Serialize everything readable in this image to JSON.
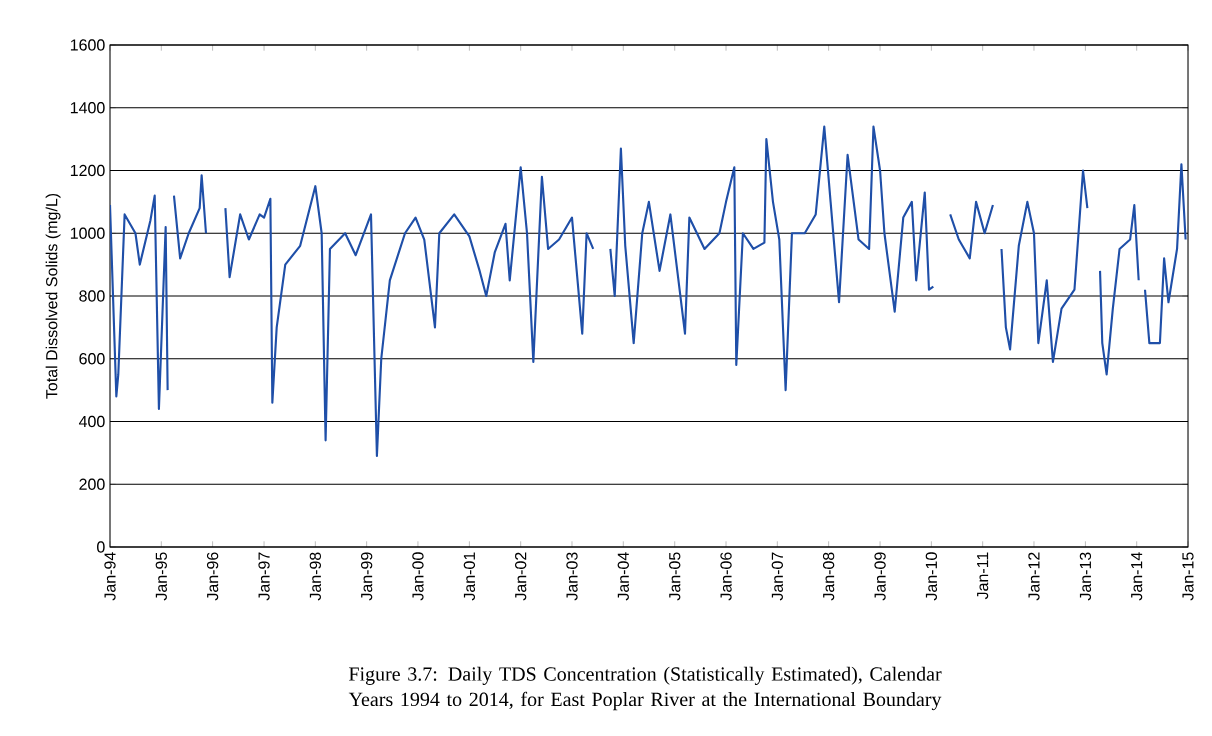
{
  "chart_data": {
    "type": "line",
    "ylabel": "Total Dissolved Solids (mg/L)",
    "annotations": [
      "Figure 3.7: Daily TDS Concentration (Statistically Estimated), Calendar Years 1994 to 2014, for East Poplar River at the International Boundary"
    ],
    "x": [
      "1994-01-01",
      "1994-02-15",
      "1994-03-01",
      "1994-04-15",
      "1994-07-01",
      "1994-08-01",
      "1994-10-15",
      "1994-11-15",
      "1994-12-15",
      "1995-02-01",
      "1995-02-15",
      "1995-03-15",
      "1995-04-01",
      "1995-05-15",
      "1995-07-15",
      "1995-10-01",
      "1995-10-15",
      "1995-11-15",
      "1996-02-01",
      "1996-04-01",
      "1996-05-01",
      "1996-07-15",
      "1996-09-15",
      "1996-12-01",
      "1997-01-01",
      "1997-02-15",
      "1997-03-01",
      "1997-04-01",
      "1997-06-01",
      "1997-09-15",
      "1998-01-01",
      "1998-02-15",
      "1998-03-15",
      "1998-04-15",
      "1998-08-01",
      "1998-10-15",
      "1999-02-01",
      "1999-03-15",
      "1999-04-15",
      "1999-06-15",
      "1999-10-01",
      "1999-12-15",
      "2000-02-15",
      "2000-05-01",
      "2000-06-01",
      "2000-09-15",
      "2001-01-01",
      "2001-03-15",
      "2001-05-01",
      "2001-07-01",
      "2001-09-15",
      "2001-10-15",
      "2002-01-01",
      "2002-02-15",
      "2002-04-01",
      "2002-06-01",
      "2002-07-15",
      "2002-10-01",
      "2003-01-01",
      "2003-03-15",
      "2003-04-15",
      "2003-06-01",
      "2003-07-15",
      "2003-10-01",
      "2003-11-01",
      "2003-12-15",
      "2004-01-15",
      "2004-03-15",
      "2004-05-15",
      "2004-07-01",
      "2004-09-15",
      "2004-12-01",
      "2005-03-15",
      "2005-04-15",
      "2005-08-01",
      "2005-11-15",
      "2006-01-01",
      "2006-03-01",
      "2006-03-15",
      "2006-05-01",
      "2006-07-15",
      "2006-10-01",
      "2006-10-15",
      "2006-12-01",
      "2007-01-15",
      "2007-03-01",
      "2007-04-15",
      "2007-07-15",
      "2007-10-01",
      "2007-12-01",
      "2008-01-15",
      "2008-03-15",
      "2008-05-15",
      "2008-08-01",
      "2008-10-15",
      "2008-11-15",
      "2009-01-01",
      "2009-02-01",
      "2009-04-15",
      "2009-06-15",
      "2009-08-15",
      "2009-09-15",
      "2009-11-15",
      "2009-12-15",
      "2010-01-15",
      "2010-03-01",
      "2010-05-15",
      "2010-07-15",
      "2010-10-01",
      "2010-11-15",
      "2011-01-15",
      "2011-03-15",
      "2011-04-15",
      "2011-05-15",
      "2011-06-15",
      "2011-07-15",
      "2011-09-15",
      "2011-11-15",
      "2012-01-01",
      "2012-02-01",
      "2012-04-01",
      "2012-05-15",
      "2012-07-15",
      "2012-10-15",
      "2012-12-15",
      "2013-01-15",
      "2013-02-15",
      "2013-04-15",
      "2013-05-01",
      "2013-06-01",
      "2013-07-15",
      "2013-09-01",
      "2013-11-15",
      "2013-12-15",
      "2014-01-15",
      "2014-02-15",
      "2014-03-01",
      "2014-04-01",
      "2014-06-15",
      "2014-07-15",
      "2014-08-15",
      "2014-10-15",
      "2014-11-15",
      "2014-12-15"
    ],
    "series": [
      {
        "color": "#1f4fa8",
        "values": [
          1090,
          480,
          550,
          1060,
          1000,
          900,
          1040,
          1120,
          440,
          1020,
          500,
          null,
          1120,
          920,
          1000,
          1080,
          1185,
          1000,
          null,
          1080,
          860,
          1060,
          980,
          1060,
          1050,
          1110,
          460,
          700,
          900,
          960,
          1150,
          1000,
          340,
          950,
          1000,
          930,
          1060,
          290,
          600,
          850,
          1000,
          1050,
          980,
          700,
          1000,
          1060,
          990,
          880,
          800,
          940,
          1030,
          850,
          1210,
          1000,
          590,
          1180,
          950,
          980,
          1050,
          680,
          1000,
          950,
          null,
          950,
          800,
          1270,
          960,
          650,
          1000,
          1100,
          880,
          1060,
          680,
          1050,
          950,
          1000,
          1100,
          1210,
          580,
          1000,
          950,
          970,
          1300,
          1100,
          980,
          500,
          1000,
          1000,
          1060,
          1340,
          1100,
          780,
          1250,
          980,
          950,
          1340,
          1200,
          1000,
          750,
          1050,
          1100,
          850,
          1130,
          820,
          830,
          null,
          1060,
          980,
          920,
          1100,
          1000,
          1090,
          null,
          950,
          700,
          630,
          960,
          1100,
          1000,
          650,
          850,
          590,
          760,
          820,
          1200,
          1080,
          null,
          880,
          650,
          550,
          760,
          950,
          980,
          1090,
          850,
          null,
          820,
          650,
          650,
          920,
          780,
          950,
          1220,
          980
        ]
      }
    ],
    "xlim": [
      "1994-01-01",
      "2015-01-01"
    ],
    "xticks": [
      {
        "value": "1994-01-01",
        "label": "Jan-94"
      },
      {
        "value": "1995-01-01",
        "label": "Jan-95"
      },
      {
        "value": "1996-01-01",
        "label": "Jan-96"
      },
      {
        "value": "1997-01-01",
        "label": "Jan-97"
      },
      {
        "value": "1998-01-01",
        "label": "Jan-98"
      },
      {
        "value": "1999-01-01",
        "label": "Jan-99"
      },
      {
        "value": "2000-01-01",
        "label": "Jan-00"
      },
      {
        "value": "2001-01-01",
        "label": "Jan-01"
      },
      {
        "value": "2002-01-01",
        "label": "Jan-02"
      },
      {
        "value": "2003-01-01",
        "label": "Jan-03"
      },
      {
        "value": "2004-01-01",
        "label": "Jan-04"
      },
      {
        "value": "2005-01-01",
        "label": "Jan-05"
      },
      {
        "value": "2006-01-01",
        "label": "Jan-06"
      },
      {
        "value": "2007-01-01",
        "label": "Jan-07"
      },
      {
        "value": "2008-01-01",
        "label": "Jan-08"
      },
      {
        "value": "2009-01-01",
        "label": "Jan-09"
      },
      {
        "value": "2010-01-01",
        "label": "Jan-10"
      },
      {
        "value": "2011-01-01",
        "label": "Jan-11"
      },
      {
        "value": "2012-01-01",
        "label": "Jan-12"
      },
      {
        "value": "2013-01-01",
        "label": "Jan-13"
      },
      {
        "value": "2014-01-01",
        "label": "Jan-14"
      },
      {
        "value": "2015-01-01",
        "label": "Jan-15"
      }
    ],
    "ylim": [
      0,
      1600
    ],
    "yticks": [
      0,
      200,
      400,
      600,
      800,
      1000,
      1200,
      1400,
      1600
    ],
    "grid": "y"
  }
}
